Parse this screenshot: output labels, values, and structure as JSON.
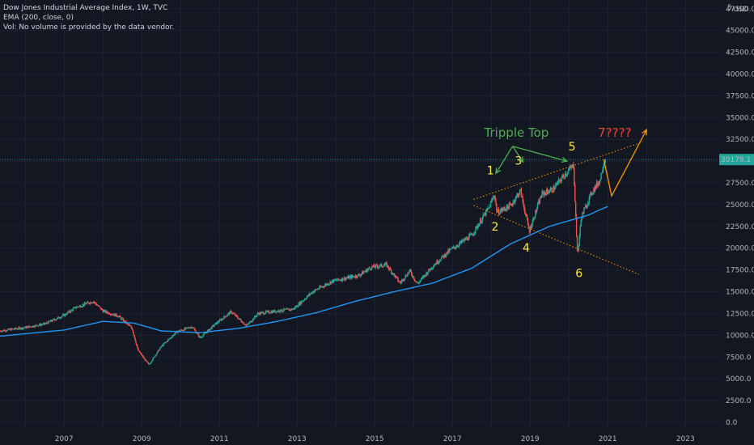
{
  "legend": {
    "line1": "Dow Jones Industrial Average Index, 1W, TVC",
    "line2": "EMA (200, close, 0)",
    "line3": "Vol: No volume is provided by the data vendor."
  },
  "price_axis": {
    "currency": "USD",
    "top_partial": "5",
    "current_price": "30179.1",
    "current_price_color": "#26a69a"
  },
  "colors": {
    "background": "#131722",
    "up_candle": "#26a69a",
    "down_candle": "#ef5350",
    "ema": "#2196f3",
    "annotation_yellow": "#ffeb3b",
    "annotation_green": "#4caf50",
    "annotation_red": "#f44336",
    "annotation_orange": "#ff9800"
  },
  "chart_data": {
    "type": "candlestick",
    "title": "Dow Jones Industrial Average Index, 1W, TVC",
    "x_ticks": [
      "2007",
      "2009",
      "2011",
      "2013",
      "2015",
      "2017",
      "2019",
      "2021",
      "2023"
    ],
    "y_ticks": [
      "0.0",
      "2500.0",
      "5000.0",
      "7500.0",
      "10000.0",
      "12500.0",
      "15000.0",
      "17500.0",
      "20000.0",
      "22500.0",
      "25000.0",
      "27500.0",
      "30000.0",
      "32500.0",
      "35000.0",
      "37500.0",
      "40000.0",
      "42500.0",
      "45000.0",
      "47500.0"
    ],
    "xlim": [
      2005.35,
      2023.85
    ],
    "ylim": [
      0,
      48500
    ],
    "grid": true,
    "price_keypoints": [
      [
        2005.35,
        10500
      ],
      [
        2006.0,
        10900
      ],
      [
        2006.5,
        11300
      ],
      [
        2007.0,
        12300
      ],
      [
        2007.3,
        13200
      ],
      [
        2007.75,
        13900
      ],
      [
        2008.0,
        12800
      ],
      [
        2008.4,
        12200
      ],
      [
        2008.75,
        10800
      ],
      [
        2008.9,
        8300
      ],
      [
        2009.18,
        6600
      ],
      [
        2009.5,
        8700
      ],
      [
        2009.9,
        10400
      ],
      [
        2010.3,
        11000
      ],
      [
        2010.5,
        9700
      ],
      [
        2010.9,
        11300
      ],
      [
        2011.3,
        12700
      ],
      [
        2011.7,
        11100
      ],
      [
        2012.0,
        12500
      ],
      [
        2012.5,
        12800
      ],
      [
        2012.9,
        13000
      ],
      [
        2013.4,
        15000
      ],
      [
        2013.9,
        16200
      ],
      [
        2014.6,
        16900
      ],
      [
        2014.9,
        17800
      ],
      [
        2015.3,
        18100
      ],
      [
        2015.65,
        16000
      ],
      [
        2015.9,
        17400
      ],
      [
        2016.1,
        15900
      ],
      [
        2016.5,
        18000
      ],
      [
        2016.95,
        19800
      ],
      [
        2017.5,
        21500
      ],
      [
        2017.95,
        24700
      ],
      [
        2018.08,
        26200
      ],
      [
        2018.15,
        24100
      ],
      [
        2018.5,
        24900
      ],
      [
        2018.75,
        26600
      ],
      [
        2018.98,
        22000
      ],
      [
        2019.3,
        26200
      ],
      [
        2019.6,
        26800
      ],
      [
        2019.9,
        28500
      ],
      [
        2020.12,
        29500
      ],
      [
        2020.22,
        19000
      ],
      [
        2020.32,
        23600
      ],
      [
        2020.6,
        26500
      ],
      [
        2020.8,
        27800
      ],
      [
        2020.9,
        30000
      ],
      [
        2020.95,
        30179.1
      ]
    ],
    "ema200_keypoints": [
      [
        2005.35,
        9900
      ],
      [
        2007.0,
        10600
      ],
      [
        2008.0,
        11600
      ],
      [
        2008.8,
        11400
      ],
      [
        2009.5,
        10500
      ],
      [
        2010.5,
        10300
      ],
      [
        2011.5,
        10800
      ],
      [
        2012.5,
        11600
      ],
      [
        2013.5,
        12600
      ],
      [
        2014.5,
        13900
      ],
      [
        2015.5,
        15000
      ],
      [
        2016.5,
        16000
      ],
      [
        2017.5,
        17700
      ],
      [
        2018.5,
        20500
      ],
      [
        2019.5,
        22500
      ],
      [
        2020.5,
        23800
      ],
      [
        2021.0,
        24800
      ]
    ],
    "current_price": 30179.1
  },
  "annotations": {
    "labels": [
      {
        "text": "1",
        "x": 2017.98,
        "y": 28500,
        "color": "#ffeb3b",
        "size": 14
      },
      {
        "text": "2",
        "x": 2018.1,
        "y": 22000,
        "color": "#ffeb3b",
        "size": 14
      },
      {
        "text": "3",
        "x": 2018.7,
        "y": 29600,
        "color": "#ffeb3b",
        "size": 14
      },
      {
        "text": "4",
        "x": 2018.9,
        "y": 19600,
        "color": "#ffeb3b",
        "size": 14
      },
      {
        "text": "5",
        "x": 2020.08,
        "y": 31200,
        "color": "#ffeb3b",
        "size": 14
      },
      {
        "text": "6",
        "x": 2020.26,
        "y": 16700,
        "color": "#ffeb3b",
        "size": 14
      },
      {
        "text": "Tripple Top",
        "x": 2018.65,
        "y": 32800,
        "color": "#4caf50",
        "size": 15
      },
      {
        "text": "7????",
        "x": 2021.18,
        "y": 32800,
        "color": "#f44336",
        "size": 15
      }
    ],
    "arrows": [
      {
        "color": "#4caf50",
        "points": [
          [
            2018.55,
            31700
          ],
          [
            2018.12,
            28600
          ]
        ]
      },
      {
        "color": "#4caf50",
        "points": [
          [
            2018.55,
            31700
          ],
          [
            2018.82,
            29900
          ]
        ]
      },
      {
        "color": "#4caf50",
        "points": [
          [
            2018.55,
            31700
          ],
          [
            2019.95,
            30000
          ]
        ]
      },
      {
        "color": "#ff9800",
        "points": [
          [
            2020.9,
            30200
          ],
          [
            2021.1,
            26000
          ],
          [
            2022.0,
            33600
          ]
        ]
      }
    ],
    "trendlines": [
      {
        "color": "#ff9800",
        "points": [
          [
            2017.55,
            25600
          ],
          [
            2021.9,
            32200
          ]
        ]
      },
      {
        "color": "#ff9800",
        "points": [
          [
            2017.55,
            24900
          ],
          [
            2021.8,
            17000
          ]
        ]
      }
    ]
  }
}
